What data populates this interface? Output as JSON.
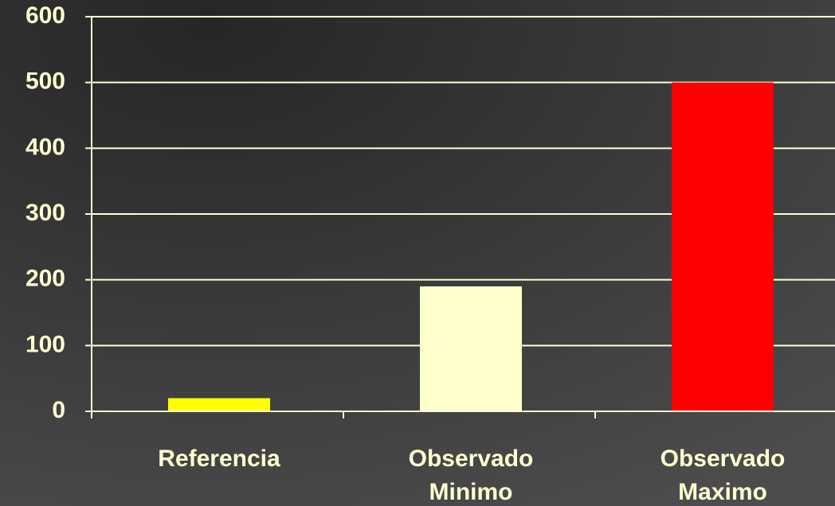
{
  "chart_data": {
    "type": "bar",
    "categories": [
      "Referencia",
      "Observado Minimo",
      "Observado Maximo"
    ],
    "values": [
      20,
      190,
      500
    ],
    "colors": [
      "#ffff00",
      "#ffffcc",
      "#ff0000"
    ],
    "ylim": [
      0,
      600
    ],
    "yticks": [
      0,
      100,
      200,
      300,
      400,
      500,
      600
    ],
    "grid": true
  }
}
